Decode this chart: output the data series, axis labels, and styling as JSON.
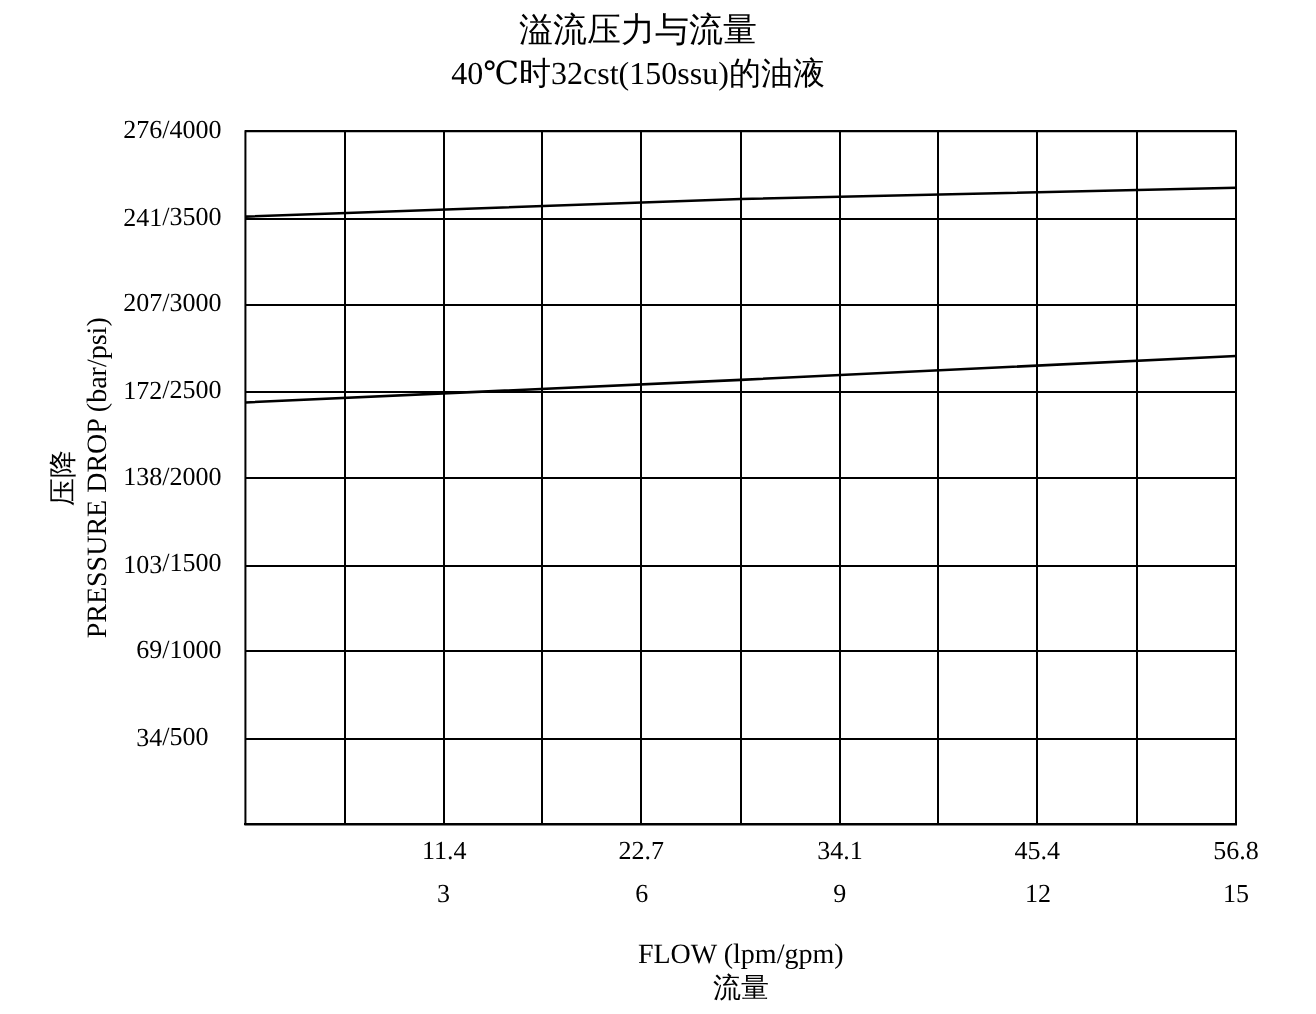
{
  "chart_data": {
    "type": "line",
    "title": "溢流压力与流量",
    "subtitle": "40℃时32cst(150ssu)的油液",
    "xlabel": "FLOW (lpm/gpm)\n流量",
    "ylabel": "压降\nPRESSURE DROP (bar/psi)",
    "series": [
      {
        "color": "#000000",
        "x": [
          0,
          28.4,
          56.8
        ],
        "values": [
          242,
          249,
          253.5
        ]
      },
      {
        "color": "#000000",
        "x": [
          0,
          28.4,
          56.8
        ],
        "values": [
          168,
          177,
          186.5
        ]
      }
    ],
    "xlim": [
      0,
      56.8
    ],
    "xticks": [
      {
        "value": 5.7,
        "label": null
      },
      11.4,
      {
        "value": 17,
        "label": null
      },
      22.7,
      {
        "value": 28.4,
        "label": null
      },
      34.1,
      {
        "value": 39.7,
        "label": null
      },
      45.4,
      {
        "value": 51.1,
        "label": null
      },
      56.8
    ],
    "x2lim": [
      0,
      15
    ],
    "x2ticks": [
      3,
      6,
      9,
      12,
      15
    ],
    "ylim": [
      0,
      276
    ],
    "yticks": [
      34,
      69,
      103,
      138,
      172,
      207,
      241,
      276
    ],
    "y2lim": [
      0,
      4000
    ],
    "y2ticks": [
      {
        "value": 500,
        "label": "/500"
      },
      {
        "value": 1000,
        "label": "/1000"
      },
      {
        "value": 1500,
        "label": "/1500"
      },
      {
        "value": 2000,
        "label": "/2000"
      },
      {
        "value": 2500,
        "label": "/2500"
      },
      {
        "value": 3000,
        "label": "/3000"
      },
      {
        "value": 3500,
        "label": "/3500"
      },
      {
        "value": 4000,
        "label": "/4000"
      }
    ],
    "grid": true,
    "legend": false,
    "marker": "none",
    "line_style": "solid"
  }
}
